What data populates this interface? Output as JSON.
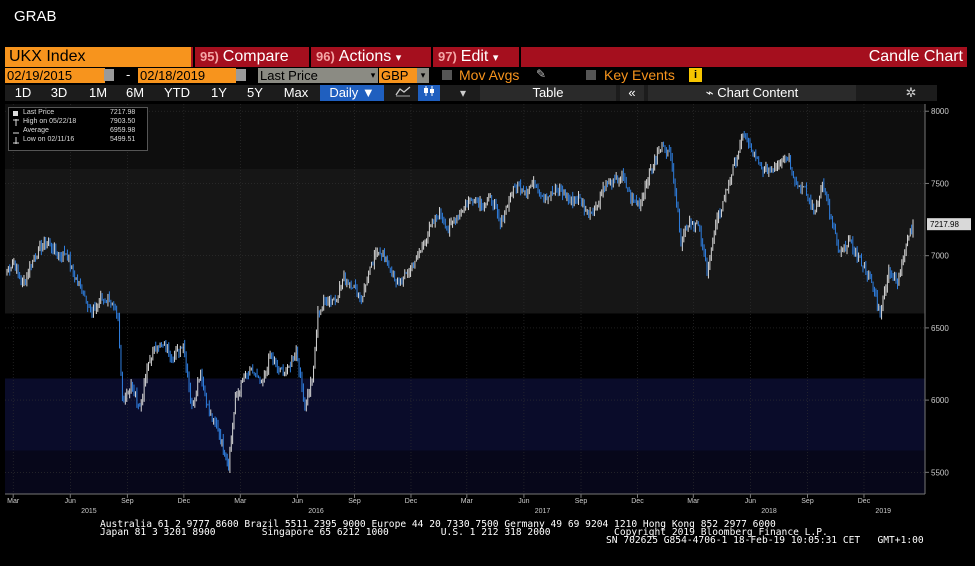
{
  "window": {
    "title": "GRAB"
  },
  "toolbar": {
    "ticker": "UKX Index",
    "compare": {
      "num": "95)",
      "label": "Compare"
    },
    "actions": {
      "num": "96)",
      "label": "Actions",
      "caret": "▾"
    },
    "edit": {
      "num": "97)",
      "label": "Edit",
      "caret": "▾"
    },
    "chart_type": "Candle Chart"
  },
  "params": {
    "start_date": "02/19/2015",
    "end_date": "02/18/2019",
    "date_dash": "-",
    "price_field": "Last Price",
    "currency": "GBP",
    "dropdown_caret": "▾",
    "mov_avgs": "Mov Avgs",
    "key_events": "Key Events",
    "info_glyph": "i"
  },
  "periods": {
    "buttons": [
      "1D",
      "3D",
      "1M",
      "6M",
      "YTD",
      "1Y",
      "5Y",
      "Max"
    ],
    "frequency": "Daily ▼",
    "line_icon": "line-chart-icon",
    "candle_icon": "candle-icon",
    "table": "Table",
    "collapse": "«",
    "chart_content": "Chart Content",
    "gear": "✲"
  },
  "legend": {
    "rows": [
      {
        "label": "Last Price",
        "value": "7217.98"
      },
      {
        "label": "High on 05/22/18",
        "value": "7903.50"
      },
      {
        "label": "Average",
        "value": "6959.98"
      },
      {
        "label": "Low on 02/11/16",
        "value": "5499.51"
      }
    ]
  },
  "colors": {
    "accent_orange": "#f7941d",
    "bar_red": "#a50f1e",
    "selected_blue": "#1f5fbf",
    "candle_up": "#d8d8d8",
    "candle_down": "#2f7fe0"
  },
  "footer": {
    "line1": "Australia 61 2 9777 8600 Brazil 5511 2395 9000 Europe 44 20 7330 7500 Germany 49 69 9204 1210 Hong Kong 852 2977 6000",
    "line2": "Japan 81 3 3201 8900        Singapore 65 6212 1000         U.S. 1 212 318 2000           Copyright 2019 Bloomberg Finance L.P.",
    "line3": "SN 702625 G854-4706-1 18-Feb-19 10:05:31 CET   GMT+1:00"
  },
  "chart_data": {
    "type": "candlestick",
    "title": "",
    "xlabel": "",
    "ylabel": "",
    "ylim": [
      5350,
      8050
    ],
    "y_ticks": [
      5500,
      6000,
      6500,
      7000,
      7500,
      8000
    ],
    "last_value_label": "7217.98",
    "x_tick_labels": [
      {
        "label": "Mar",
        "date": "2015-03-01"
      },
      {
        "label": "Jun",
        "date": "2015-06-01"
      },
      {
        "label": "Sep",
        "date": "2015-09-01"
      },
      {
        "label": "Dec",
        "date": "2015-12-01"
      },
      {
        "label": "Mar",
        "date": "2016-03-01"
      },
      {
        "label": "Jun",
        "date": "2016-06-01"
      },
      {
        "label": "Sep",
        "date": "2016-09-01"
      },
      {
        "label": "Dec",
        "date": "2016-12-01"
      },
      {
        "label": "Mar",
        "date": "2017-03-01"
      },
      {
        "label": "Jun",
        "date": "2017-06-01"
      },
      {
        "label": "Sep",
        "date": "2017-09-01"
      },
      {
        "label": "Dec",
        "date": "2017-12-01"
      },
      {
        "label": "Mar",
        "date": "2018-03-01"
      },
      {
        "label": "Jun",
        "date": "2018-06-01"
      },
      {
        "label": "Sep",
        "date": "2018-09-01"
      },
      {
        "label": "Dec",
        "date": "2018-12-01"
      }
    ],
    "year_labels": [
      {
        "label": "2015",
        "date": "2015-07-01"
      },
      {
        "label": "2016",
        "date": "2016-07-01"
      },
      {
        "label": "2017",
        "date": "2017-07-01"
      },
      {
        "label": "2018",
        "date": "2018-07-01"
      },
      {
        "label": "2019",
        "date": "2019-01-01"
      }
    ],
    "series": [
      {
        "points": [
          [
            "2015-02-19",
            6900
          ],
          [
            "2015-03-02",
            6950
          ],
          [
            "2015-03-16",
            6800
          ],
          [
            "2015-03-30",
            6950
          ],
          [
            "2015-04-13",
            7050
          ],
          [
            "2015-04-27",
            7090
          ],
          [
            "2015-05-11",
            7000
          ],
          [
            "2015-05-25",
            7020
          ],
          [
            "2015-06-08",
            6850
          ],
          [
            "2015-06-22",
            6750
          ],
          [
            "2015-07-06",
            6600
          ],
          [
            "2015-07-20",
            6700
          ],
          [
            "2015-08-03",
            6700
          ],
          [
            "2015-08-17",
            6550
          ],
          [
            "2015-08-24",
            6000
          ],
          [
            "2015-09-07",
            6100
          ],
          [
            "2015-09-21",
            5950
          ],
          [
            "2015-10-05",
            6250
          ],
          [
            "2015-10-19",
            6400
          ],
          [
            "2015-11-02",
            6350
          ],
          [
            "2015-11-16",
            6300
          ],
          [
            "2015-11-30",
            6400
          ],
          [
            "2015-12-14",
            5950
          ],
          [
            "2015-12-28",
            6200
          ],
          [
            "2016-01-11",
            5900
          ],
          [
            "2016-01-25",
            5800
          ],
          [
            "2016-02-11",
            5550
          ],
          [
            "2016-02-22",
            6000
          ],
          [
            "2016-03-07",
            6150
          ],
          [
            "2016-03-21",
            6200
          ],
          [
            "2016-04-04",
            6100
          ],
          [
            "2016-04-18",
            6300
          ],
          [
            "2016-05-02",
            6200
          ],
          [
            "2016-05-16",
            6200
          ],
          [
            "2016-05-30",
            6350
          ],
          [
            "2016-06-13",
            5950
          ],
          [
            "2016-06-27",
            6200
          ],
          [
            "2016-07-04",
            6600
          ],
          [
            "2016-07-18",
            6700
          ],
          [
            "2016-08-01",
            6700
          ],
          [
            "2016-08-15",
            6850
          ],
          [
            "2016-08-29",
            6800
          ],
          [
            "2016-09-12",
            6700
          ],
          [
            "2016-09-26",
            6900
          ],
          [
            "2016-10-10",
            7050
          ],
          [
            "2016-10-24",
            6950
          ],
          [
            "2016-11-07",
            6800
          ],
          [
            "2016-11-21",
            6850
          ],
          [
            "2016-12-05",
            6950
          ],
          [
            "2016-12-19",
            7050
          ],
          [
            "2017-01-02",
            7200
          ],
          [
            "2017-01-16",
            7300
          ],
          [
            "2017-01-30",
            7180
          ],
          [
            "2017-02-13",
            7280
          ],
          [
            "2017-02-27",
            7350
          ],
          [
            "2017-03-13",
            7400
          ],
          [
            "2017-03-27",
            7350
          ],
          [
            "2017-04-10",
            7400
          ],
          [
            "2017-04-24",
            7200
          ],
          [
            "2017-05-08",
            7400
          ],
          [
            "2017-05-22",
            7500
          ],
          [
            "2017-06-05",
            7450
          ],
          [
            "2017-06-19",
            7500
          ],
          [
            "2017-07-03",
            7400
          ],
          [
            "2017-07-17",
            7430
          ],
          [
            "2017-07-31",
            7450
          ],
          [
            "2017-08-14",
            7380
          ],
          [
            "2017-08-28",
            7400
          ],
          [
            "2017-09-11",
            7300
          ],
          [
            "2017-09-25",
            7330
          ],
          [
            "2017-10-09",
            7500
          ],
          [
            "2017-10-23",
            7500
          ],
          [
            "2017-11-06",
            7550
          ],
          [
            "2017-11-20",
            7400
          ],
          [
            "2017-12-04",
            7350
          ],
          [
            "2017-12-18",
            7550
          ],
          [
            "2018-01-02",
            7700
          ],
          [
            "2018-01-12",
            7780
          ],
          [
            "2018-01-26",
            7650
          ],
          [
            "2018-02-09",
            7100
          ],
          [
            "2018-02-23",
            7250
          ],
          [
            "2018-03-09",
            7200
          ],
          [
            "2018-03-23",
            6900
          ],
          [
            "2018-04-06",
            7200
          ],
          [
            "2018-04-20",
            7400
          ],
          [
            "2018-05-04",
            7600
          ],
          [
            "2018-05-22",
            7850
          ],
          [
            "2018-06-05",
            7700
          ],
          [
            "2018-06-19",
            7600
          ],
          [
            "2018-07-03",
            7600
          ],
          [
            "2018-07-17",
            7650
          ],
          [
            "2018-07-31",
            7700
          ],
          [
            "2018-08-14",
            7500
          ],
          [
            "2018-08-28",
            7450
          ],
          [
            "2018-09-11",
            7300
          ],
          [
            "2018-09-25",
            7500
          ],
          [
            "2018-10-09",
            7250
          ],
          [
            "2018-10-23",
            7000
          ],
          [
            "2018-11-06",
            7100
          ],
          [
            "2018-11-20",
            7000
          ],
          [
            "2018-12-04",
            6900
          ],
          [
            "2018-12-18",
            6750
          ],
          [
            "2018-12-27",
            6600
          ],
          [
            "2019-01-10",
            6900
          ],
          [
            "2019-01-24",
            6800
          ],
          [
            "2019-02-07",
            7100
          ],
          [
            "2019-02-18",
            7217.98
          ]
        ]
      }
    ]
  }
}
